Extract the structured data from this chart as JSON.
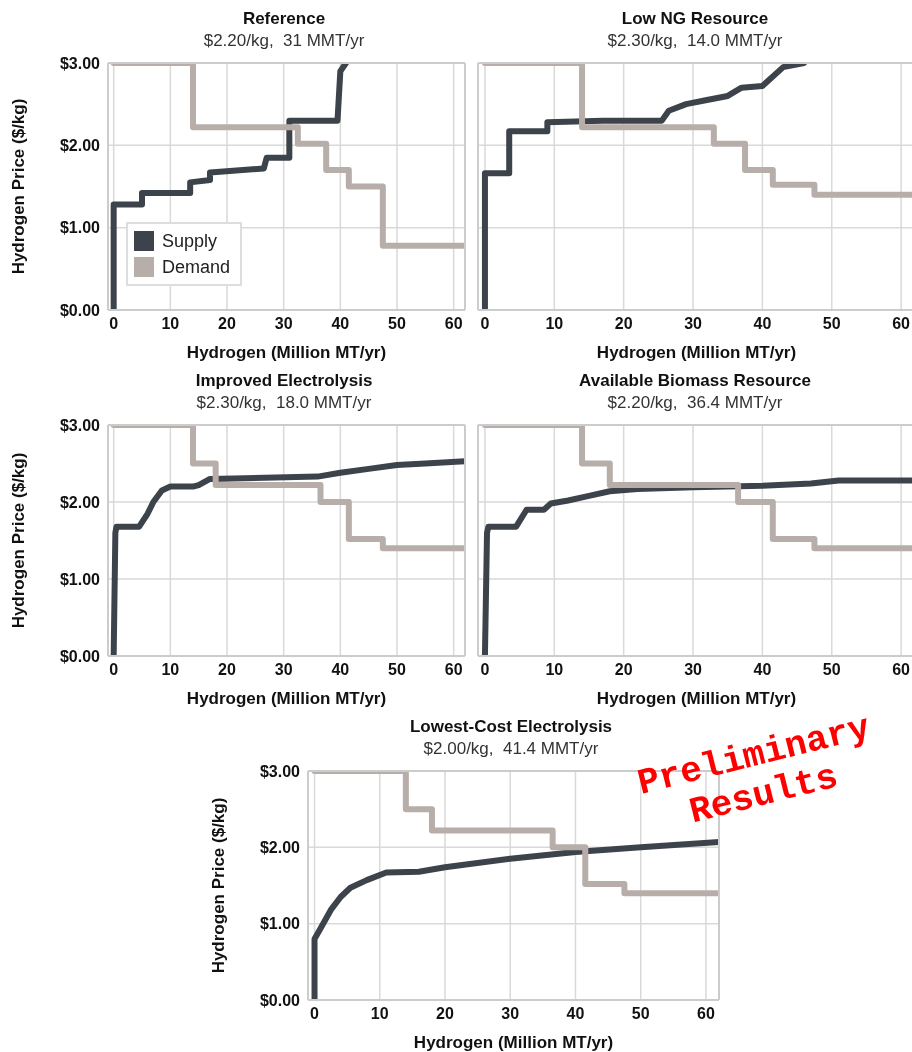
{
  "chart_data": [
    {
      "type": "line",
      "title": "Reference",
      "subtitle": "$2.20/kg,  31 MMT/yr",
      "xlabel": "Hydrogen (Million MT/yr)",
      "ylabel": "Hydrogen Price ($/kg)",
      "xlim": [
        -1,
        62
      ],
      "ylim": [
        0,
        3
      ],
      "xticks": [
        0,
        10,
        20,
        30,
        40,
        50,
        60
      ],
      "yticks": [
        {
          "value": 0,
          "label": "$0.00"
        },
        {
          "value": 1,
          "label": "$1.00"
        },
        {
          "value": 2,
          "label": "$2.00"
        },
        {
          "value": 3,
          "label": "$3.00"
        }
      ],
      "grid": true,
      "legend": "bottom left",
      "marker": "none",
      "line_style": "solid",
      "series": [
        {
          "name": "Supply",
          "color": "#3d434b",
          "x": [
            0,
            0,
            5,
            5,
            13.5,
            13.5,
            17,
            17,
            26.5,
            27,
            31,
            31,
            39.5,
            40,
            41
          ],
          "values": [
            0,
            1.28,
            1.28,
            1.42,
            1.42,
            1.55,
            1.58,
            1.67,
            1.72,
            1.85,
            1.85,
            2.3,
            2.3,
            2.9,
            3.0
          ]
        },
        {
          "name": "Demand",
          "color": "#b8aea9",
          "x": [
            0,
            14,
            14,
            32.5,
            32.5,
            37.5,
            37.5,
            41.5,
            41.5,
            47.5,
            47.5,
            62
          ],
          "values": [
            3.0,
            3.0,
            2.22,
            2.22,
            2.02,
            2.02,
            1.7,
            1.7,
            1.5,
            1.5,
            0.78,
            0.78
          ]
        }
      ]
    },
    {
      "type": "line",
      "title": "Low NG Resource",
      "subtitle": "$2.30/kg,  14.0 MMT/yr",
      "xlabel": "Hydrogen (Million MT/yr)",
      "xlim": [
        -1,
        62
      ],
      "ylim": [
        0,
        3
      ],
      "xticks": [
        0,
        10,
        20,
        30,
        40,
        50,
        60
      ],
      "yticks": [
        0,
        1,
        2,
        3
      ],
      "tick_labels": "x",
      "grid": true,
      "marker": "none",
      "line_style": "solid",
      "series": [
        {
          "color": "#3d434b",
          "x": [
            0,
            0,
            3.5,
            3.5,
            9,
            9,
            17,
            25.5,
            26.5,
            29,
            32,
            35,
            37,
            40,
            43,
            46
          ],
          "values": [
            0,
            1.66,
            1.66,
            2.17,
            2.17,
            2.28,
            2.3,
            2.3,
            2.42,
            2.5,
            2.55,
            2.6,
            2.7,
            2.72,
            2.95,
            3.0
          ]
        },
        {
          "color": "#b8aea9",
          "x": [
            0,
            14,
            14,
            33,
            33,
            37.5,
            37.5,
            41.5,
            41.5,
            47.5,
            47.5,
            62
          ],
          "values": [
            3.0,
            3.0,
            2.22,
            2.22,
            2.02,
            2.02,
            1.7,
            1.7,
            1.52,
            1.52,
            1.4,
            1.4
          ]
        }
      ]
    },
    {
      "type": "line",
      "title": "Improved Electrolysis",
      "subtitle": "$2.30/kg,  18.0 MMT/yr",
      "xlabel": "Hydrogen (Million MT/yr)",
      "ylabel": "Hydrogen Price ($/kg)",
      "xlim": [
        -1,
        62
      ],
      "ylim": [
        0,
        3
      ],
      "xticks": [
        0,
        10,
        20,
        30,
        40,
        50,
        60
      ],
      "yticks": [
        {
          "value": 0,
          "label": "$0.00"
        },
        {
          "value": 1,
          "label": "$1.00"
        },
        {
          "value": 2,
          "label": "$2.00"
        },
        {
          "value": 3,
          "label": "$3.00"
        }
      ],
      "grid": true,
      "marker": "none",
      "line_style": "solid",
      "series": [
        {
          "color": "#3d434b",
          "x": [
            0,
            0.3,
            0.5,
            4.5,
            6,
            7,
            8.5,
            10,
            14,
            15,
            17,
            36,
            40,
            45,
            50,
            55,
            62
          ],
          "values": [
            0,
            1.6,
            1.68,
            1.68,
            1.85,
            2.0,
            2.15,
            2.2,
            2.2,
            2.22,
            2.3,
            2.33,
            2.38,
            2.43,
            2.48,
            2.5,
            2.53
          ]
        },
        {
          "color": "#b8aea9",
          "x": [
            0,
            14,
            14,
            18,
            18,
            36.5,
            36.5,
            41.5,
            41.5,
            47.5,
            47.5,
            62
          ],
          "values": [
            3.0,
            3.0,
            2.5,
            2.5,
            2.22,
            2.22,
            2.0,
            2.0,
            1.52,
            1.52,
            1.4,
            1.4
          ]
        }
      ]
    },
    {
      "type": "line",
      "title": "Available Biomass Resource",
      "subtitle": "$2.20/kg,  36.4 MMT/yr",
      "xlabel": "Hydrogen (Million MT/yr)",
      "xlim": [
        -1,
        62
      ],
      "ylim": [
        0,
        3
      ],
      "xticks": [
        0,
        10,
        20,
        30,
        40,
        50,
        60
      ],
      "yticks": [
        0,
        1,
        2,
        3
      ],
      "tick_labels": "x",
      "grid": true,
      "marker": "none",
      "line_style": "solid",
      "series": [
        {
          "color": "#3d434b",
          "x": [
            0,
            0.3,
            0.5,
            4.5,
            6,
            8.5,
            9.5,
            12,
            15,
            18,
            22,
            30,
            40,
            47,
            51,
            62
          ],
          "values": [
            0,
            1.6,
            1.68,
            1.68,
            1.9,
            1.9,
            1.98,
            2.02,
            2.08,
            2.14,
            2.17,
            2.19,
            2.21,
            2.24,
            2.28,
            2.28
          ]
        },
        {
          "color": "#b8aea9",
          "x": [
            0,
            14,
            14,
            18,
            18,
            36.5,
            36.5,
            41.5,
            41.5,
            47.5,
            47.5,
            62
          ],
          "values": [
            3.0,
            3.0,
            2.5,
            2.5,
            2.22,
            2.22,
            2.0,
            2.0,
            1.52,
            1.52,
            1.4,
            1.4
          ]
        }
      ]
    },
    {
      "type": "line",
      "title": "Lowest-Cost Electrolysis",
      "subtitle": "$2.00/kg,  41.4 MMT/yr",
      "xlabel": "Hydrogen (Million MT/yr)",
      "ylabel": "Hydrogen Price ($/kg)",
      "xlim": [
        -1,
        62
      ],
      "ylim": [
        0,
        3
      ],
      "xticks": [
        0,
        10,
        20,
        30,
        40,
        50,
        60
      ],
      "yticks": [
        {
          "value": 0,
          "label": "$0.00"
        },
        {
          "value": 1,
          "label": "$1.00"
        },
        {
          "value": 2,
          "label": "$2.00"
        },
        {
          "value": 3,
          "label": "$3.00"
        }
      ],
      "grid": true,
      "marker": "none",
      "line_style": "solid",
      "annotations": [
        "Preliminary Results"
      ],
      "series": [
        {
          "color": "#3d434b",
          "x": [
            0,
            0,
            1,
            2.5,
            4,
            5.5,
            8,
            11,
            16,
            20,
            30,
            40,
            50,
            62
          ],
          "values": [
            0,
            0.8,
            0.95,
            1.18,
            1.35,
            1.47,
            1.57,
            1.67,
            1.68,
            1.74,
            1.85,
            1.94,
            2.0,
            2.07
          ]
        },
        {
          "color": "#b8aea9",
          "x": [
            0,
            14,
            14,
            18,
            18,
            36.5,
            36.5,
            41.5,
            41.5,
            47.5,
            47.5,
            62
          ],
          "values": [
            3.0,
            3.0,
            2.5,
            2.5,
            2.22,
            2.22,
            2.0,
            2.0,
            1.52,
            1.52,
            1.4,
            1.4
          ]
        }
      ]
    }
  ]
}
